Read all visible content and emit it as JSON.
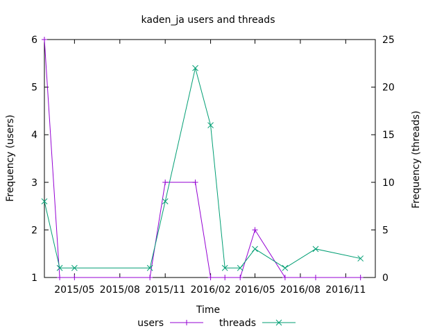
{
  "chart_data": {
    "type": "line",
    "title": "kaden_ja users and threads",
    "xlabel": "Time",
    "ylabel_left": "Frequency (users)",
    "ylabel_right": "Frequency (threads)",
    "x_axis": {
      "type": "date",
      "range": [
        "2015-03-01",
        "2016-12-31"
      ],
      "ticks": [
        {
          "date": "2015-05-01",
          "label": "2015/05"
        },
        {
          "date": "2015-08-01",
          "label": "2015/08"
        },
        {
          "date": "2015-11-01",
          "label": "2015/11"
        },
        {
          "date": "2016-02-01",
          "label": "2016/02"
        },
        {
          "date": "2016-05-01",
          "label": "2016/05"
        },
        {
          "date": "2016-08-01",
          "label": "2016/08"
        },
        {
          "date": "2016-11-01",
          "label": "2016/11"
        }
      ]
    },
    "y_left": {
      "range": [
        1,
        6
      ],
      "ticks": [
        1,
        2,
        3,
        4,
        5,
        6
      ]
    },
    "y_right": {
      "range": [
        0,
        25
      ],
      "ticks": [
        0,
        5,
        10,
        15,
        20,
        25
      ]
    },
    "grid": false,
    "legend_position": "bottom",
    "series": [
      {
        "name": "users",
        "axis": "left",
        "marker": "plus",
        "color": "#9400d3",
        "points": [
          {
            "x": "2015-03-01",
            "y": 6
          },
          {
            "x": "2015-04-01",
            "y": 1
          },
          {
            "x": "2015-05-01",
            "y": 1
          },
          {
            "x": "2015-10-01",
            "y": 1
          },
          {
            "x": "2015-11-01",
            "y": 3
          },
          {
            "x": "2016-01-01",
            "y": 3
          },
          {
            "x": "2016-02-01",
            "y": 1
          },
          {
            "x": "2016-03-01",
            "y": 1
          },
          {
            "x": "2016-04-01",
            "y": 1
          },
          {
            "x": "2016-05-01",
            "y": 2
          },
          {
            "x": "2016-07-01",
            "y": 1
          },
          {
            "x": "2016-09-01",
            "y": 1
          },
          {
            "x": "2016-12-01",
            "y": 1
          }
        ]
      },
      {
        "name": "threads",
        "axis": "right",
        "marker": "cross",
        "color": "#009e73",
        "points": [
          {
            "x": "2015-03-01",
            "y": 8
          },
          {
            "x": "2015-04-01",
            "y": 1
          },
          {
            "x": "2015-05-01",
            "y": 1
          },
          {
            "x": "2015-10-01",
            "y": 1
          },
          {
            "x": "2015-11-01",
            "y": 8
          },
          {
            "x": "2016-01-01",
            "y": 22
          },
          {
            "x": "2016-02-01",
            "y": 16
          },
          {
            "x": "2016-03-01",
            "y": 1
          },
          {
            "x": "2016-04-01",
            "y": 1
          },
          {
            "x": "2016-05-01",
            "y": 3
          },
          {
            "x": "2016-07-01",
            "y": 1
          },
          {
            "x": "2016-09-01",
            "y": 3
          },
          {
            "x": "2016-12-01",
            "y": 2
          }
        ]
      }
    ]
  }
}
